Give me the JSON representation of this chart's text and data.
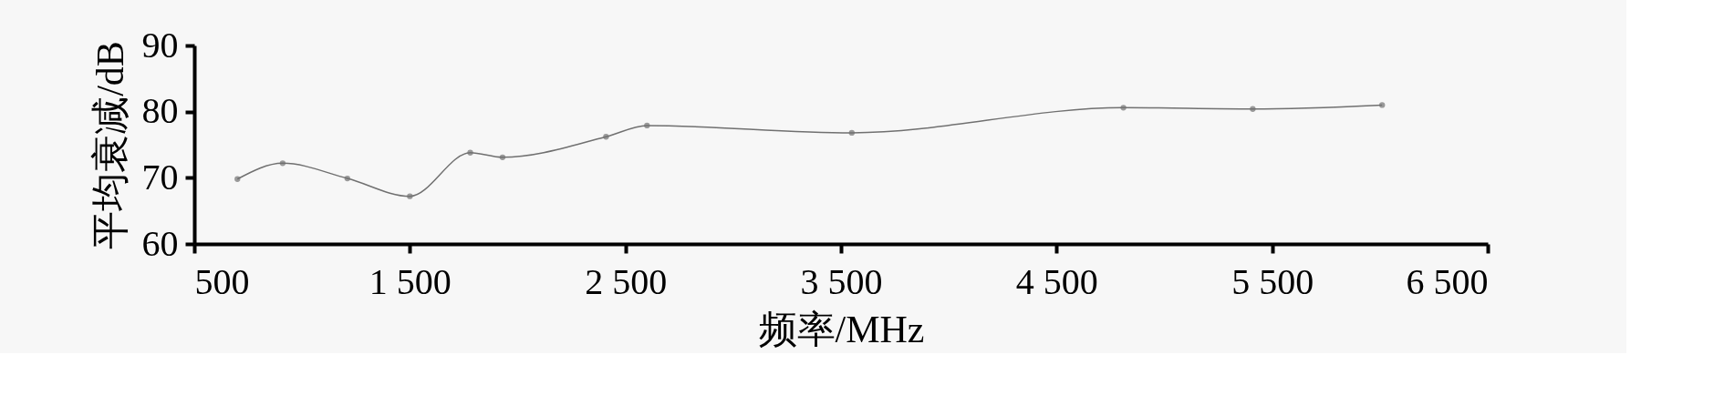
{
  "chart_data": {
    "type": "line",
    "xlabel": "频率/MHz",
    "ylabel": "平均衰减/dB",
    "x": [
      700,
      910,
      1210,
      1500,
      1780,
      1930,
      2410,
      2600,
      3550,
      4810,
      5410,
      6010
    ],
    "series": [
      {
        "color": "#707070",
        "values": [
          69.8,
          72.2,
          69.9,
          67.2,
          73.8,
          73.1,
          76.2,
          77.9,
          76.8,
          80.6,
          80.4,
          81.0
        ]
      }
    ],
    "xlim": [
      500,
      6500
    ],
    "xticks": [
      {
        "value": 500,
        "label": "500"
      },
      {
        "value": 1500,
        "label": "1 500"
      },
      {
        "value": 2500,
        "label": "2 500"
      },
      {
        "value": 3500,
        "label": "3 500"
      },
      {
        "value": 4500,
        "label": "4 500"
      },
      {
        "value": 5500,
        "label": "5 500"
      },
      {
        "value": 6500,
        "label": "6 500"
      }
    ],
    "ylim": [
      60,
      90
    ],
    "yticks": [
      60,
      70,
      80,
      90
    ],
    "grid": false,
    "legend": false,
    "marker": "circle",
    "line_style": "solid"
  }
}
